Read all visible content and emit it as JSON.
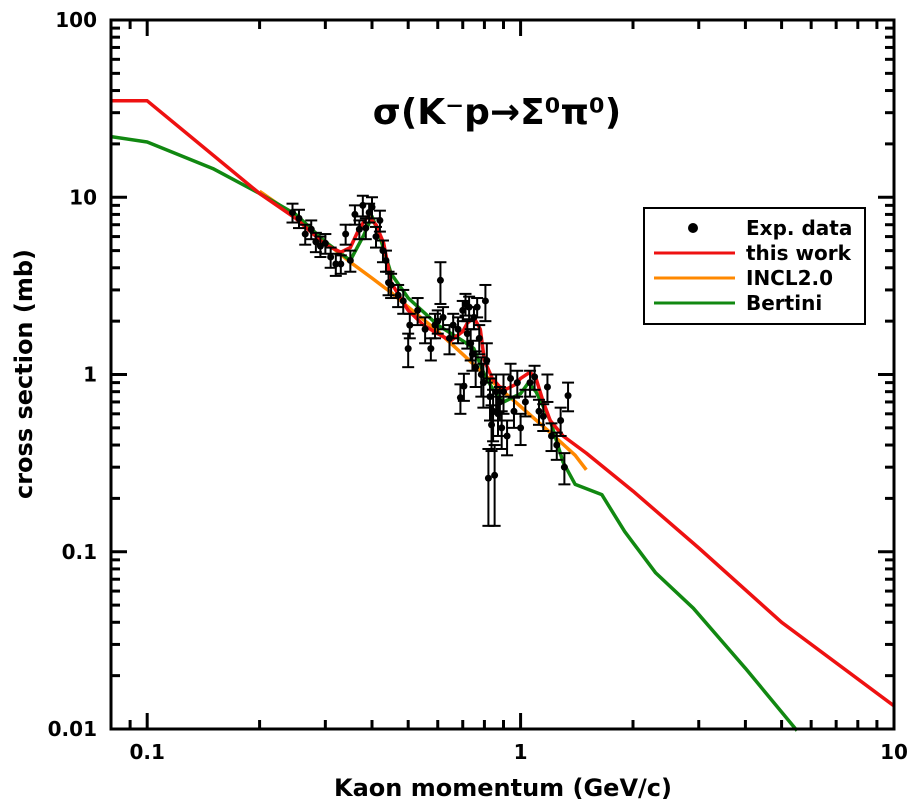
{
  "chart_data": {
    "type": "line",
    "title": "σ(K⁻p→Σ⁰π⁰)",
    "xlabel": "Kaon momentum (GeV/c)",
    "ylabel": "cross section (mb)",
    "xscale": "log",
    "yscale": "log",
    "xlim": [
      0.08,
      10
    ],
    "ylim": [
      0.01,
      100
    ],
    "x_tick_labels": [
      {
        "value": 0.1,
        "label": "0.1"
      },
      {
        "value": 1,
        "label": "1"
      },
      {
        "value": 10,
        "label": "10"
      }
    ],
    "y_tick_labels": [
      {
        "value": 0.01,
        "label": "0.01"
      },
      {
        "value": 0.1,
        "label": "0.1"
      },
      {
        "value": 1,
        "label": "1"
      },
      {
        "value": 10,
        "label": "10"
      },
      {
        "value": 100,
        "label": "100"
      }
    ],
    "legend_position": "top-right",
    "series": [
      {
        "name": "this work",
        "kind": "line",
        "color": "#ee1111",
        "x": [
          0.08,
          0.1,
          0.2,
          0.25,
          0.3,
          0.33,
          0.35,
          0.37,
          0.39,
          0.41,
          0.43,
          0.45,
          0.5,
          0.55,
          0.6,
          0.65,
          0.7,
          0.72,
          0.75,
          0.78,
          0.8,
          0.84,
          0.88,
          0.92,
          0.97,
          1.0,
          1.06,
          1.1,
          1.15,
          1.2,
          1.3,
          1.5,
          2.0,
          3.0,
          5.0,
          10.0
        ],
        "y": [
          35,
          35,
          10.5,
          7.6,
          5.4,
          4.9,
          5.2,
          6.7,
          7.8,
          7.0,
          5.5,
          3.3,
          2.3,
          1.9,
          1.7,
          1.55,
          1.75,
          1.95,
          2.1,
          1.8,
          1.2,
          0.95,
          0.85,
          0.83,
          0.88,
          0.95,
          1.03,
          0.95,
          0.7,
          0.55,
          0.45,
          0.36,
          0.22,
          0.105,
          0.04,
          0.0135
        ]
      },
      {
        "name": "INCL2.0",
        "kind": "line",
        "color": "#ff8800",
        "x": [
          0.2,
          0.25,
          0.3,
          0.35,
          0.4,
          0.45,
          0.5,
          0.6,
          0.7,
          0.8,
          0.9,
          1.0,
          1.2,
          1.4,
          1.5
        ],
        "y": [
          10.8,
          7.8,
          5.6,
          4.3,
          3.5,
          2.9,
          2.4,
          1.75,
          1.3,
          1.0,
          0.8,
          0.66,
          0.47,
          0.35,
          0.29
        ]
      },
      {
        "name": "Bertini",
        "kind": "line",
        "color": "#118811",
        "x": [
          0.08,
          0.1,
          0.15,
          0.2,
          0.25,
          0.3,
          0.35,
          0.38,
          0.4,
          0.42,
          0.45,
          0.5,
          0.6,
          0.7,
          0.75,
          0.8,
          0.85,
          0.9,
          1.0,
          1.05,
          1.1,
          1.2,
          1.3,
          1.4,
          1.65,
          1.9,
          2.3,
          2.9,
          4.0,
          5.5
        ],
        "y": [
          22,
          20.5,
          14.5,
          10.5,
          8.0,
          5.6,
          4.4,
          6.1,
          7.8,
          6.0,
          3.7,
          2.7,
          1.9,
          1.55,
          1.4,
          1.0,
          0.8,
          0.7,
          0.78,
          0.9,
          0.8,
          0.55,
          0.32,
          0.24,
          0.21,
          0.13,
          0.076,
          0.048,
          0.022,
          0.0098
        ]
      },
      {
        "name": "Exp. data",
        "kind": "errorbar",
        "color": "#000000",
        "points": [
          {
            "x": 0.245,
            "y": 8.2,
            "err": 1.0
          },
          {
            "x": 0.255,
            "y": 7.6,
            "err": 0.9
          },
          {
            "x": 0.265,
            "y": 6.2,
            "err": 0.8
          },
          {
            "x": 0.275,
            "y": 6.6,
            "err": 0.8
          },
          {
            "x": 0.283,
            "y": 5.6,
            "err": 0.7
          },
          {
            "x": 0.291,
            "y": 5.3,
            "err": 0.7
          },
          {
            "x": 0.3,
            "y": 5.5,
            "err": 0.7
          },
          {
            "x": 0.31,
            "y": 4.6,
            "err": 0.6
          },
          {
            "x": 0.32,
            "y": 4.2,
            "err": 0.6
          },
          {
            "x": 0.33,
            "y": 4.2,
            "err": 0.5
          },
          {
            "x": 0.34,
            "y": 6.2,
            "err": 0.8
          },
          {
            "x": 0.35,
            "y": 4.4,
            "err": 0.6
          },
          {
            "x": 0.36,
            "y": 8.0,
            "err": 1.0
          },
          {
            "x": 0.37,
            "y": 6.6,
            "err": 0.8
          },
          {
            "x": 0.378,
            "y": 9.0,
            "err": 1.2
          },
          {
            "x": 0.385,
            "y": 6.7,
            "err": 0.9
          },
          {
            "x": 0.393,
            "y": 8.2,
            "err": 1.0
          },
          {
            "x": 0.4,
            "y": 8.8,
            "err": 1.2
          },
          {
            "x": 0.41,
            "y": 6.0,
            "err": 0.8
          },
          {
            "x": 0.42,
            "y": 7.4,
            "err": 1.0
          },
          {
            "x": 0.428,
            "y": 5.0,
            "err": 0.7
          },
          {
            "x": 0.436,
            "y": 4.4,
            "err": 0.6
          },
          {
            "x": 0.443,
            "y": 3.3,
            "err": 0.5
          },
          {
            "x": 0.45,
            "y": 3.2,
            "err": 0.5
          },
          {
            "x": 0.47,
            "y": 2.8,
            "err": 0.4
          },
          {
            "x": 0.485,
            "y": 2.6,
            "err": 0.4
          },
          {
            "x": 0.5,
            "y": 1.4,
            "err": 0.3
          },
          {
            "x": 0.505,
            "y": 1.9,
            "err": 0.3
          },
          {
            "x": 0.53,
            "y": 2.3,
            "err": 0.4
          },
          {
            "x": 0.555,
            "y": 1.8,
            "err": 0.3
          },
          {
            "x": 0.575,
            "y": 1.4,
            "err": 0.2
          },
          {
            "x": 0.59,
            "y": 1.9,
            "err": 0.3
          },
          {
            "x": 0.6,
            "y": 2.0,
            "err": 0.3
          },
          {
            "x": 0.61,
            "y": 3.4,
            "err": 0.9
          },
          {
            "x": 0.62,
            "y": 2.1,
            "err": 0.3
          },
          {
            "x": 0.645,
            "y": 1.6,
            "err": 0.3
          },
          {
            "x": 0.66,
            "y": 1.9,
            "err": 0.3
          },
          {
            "x": 0.68,
            "y": 1.8,
            "err": 0.3
          },
          {
            "x": 0.69,
            "y": 0.74,
            "err": 0.14
          },
          {
            "x": 0.7,
            "y": 2.3,
            "err": 0.3
          },
          {
            "x": 0.705,
            "y": 0.86,
            "err": 0.15
          },
          {
            "x": 0.712,
            "y": 2.5,
            "err": 0.35
          },
          {
            "x": 0.72,
            "y": 1.7,
            "err": 0.3
          },
          {
            "x": 0.728,
            "y": 2.4,
            "err": 0.35
          },
          {
            "x": 0.735,
            "y": 1.5,
            "err": 0.3
          },
          {
            "x": 0.743,
            "y": 1.3,
            "err": 0.25
          },
          {
            "x": 0.75,
            "y": 2.1,
            "err": 0.3
          },
          {
            "x": 0.758,
            "y": 1.1,
            "err": 0.25
          },
          {
            "x": 0.765,
            "y": 2.4,
            "err": 0.3
          },
          {
            "x": 0.775,
            "y": 1.6,
            "err": 0.3
          },
          {
            "x": 0.785,
            "y": 1.0,
            "err": 0.25
          },
          {
            "x": 0.795,
            "y": 0.9,
            "err": 0.25
          },
          {
            "x": 0.805,
            "y": 2.6,
            "err": 0.6
          },
          {
            "x": 0.812,
            "y": 1.2,
            "err": 0.3
          },
          {
            "x": 0.82,
            "y": 0.26,
            "err": 0.12
          },
          {
            "x": 0.828,
            "y": 0.75,
            "err": 0.2
          },
          {
            "x": 0.836,
            "y": 0.52,
            "err": 0.15
          },
          {
            "x": 0.844,
            "y": 0.62,
            "err": 0.2
          },
          {
            "x": 0.852,
            "y": 0.27,
            "err": 0.13
          },
          {
            "x": 0.86,
            "y": 0.8,
            "err": 0.2
          },
          {
            "x": 0.87,
            "y": 0.6,
            "err": 0.15
          },
          {
            "x": 0.88,
            "y": 0.7,
            "err": 0.15
          },
          {
            "x": 0.89,
            "y": 0.5,
            "err": 0.12
          },
          {
            "x": 0.9,
            "y": 0.8,
            "err": 0.2
          },
          {
            "x": 0.92,
            "y": 0.45,
            "err": 0.1
          },
          {
            "x": 0.94,
            "y": 0.95,
            "err": 0.2
          },
          {
            "x": 0.96,
            "y": 0.62,
            "err": 0.12
          },
          {
            "x": 0.98,
            "y": 0.9,
            "err": 0.15
          },
          {
            "x": 1.0,
            "y": 0.5,
            "err": 0.1
          },
          {
            "x": 1.03,
            "y": 0.7,
            "err": 0.12
          },
          {
            "x": 1.06,
            "y": 0.9,
            "err": 0.15
          },
          {
            "x": 1.09,
            "y": 0.97,
            "err": 0.15
          },
          {
            "x": 1.12,
            "y": 0.62,
            "err": 0.1
          },
          {
            "x": 1.15,
            "y": 0.58,
            "err": 0.1
          },
          {
            "x": 1.18,
            "y": 0.85,
            "err": 0.15
          },
          {
            "x": 1.21,
            "y": 0.45,
            "err": 0.08
          },
          {
            "x": 1.25,
            "y": 0.4,
            "err": 0.07
          },
          {
            "x": 1.28,
            "y": 0.55,
            "err": 0.1
          },
          {
            "x": 1.31,
            "y": 0.3,
            "err": 0.06
          },
          {
            "x": 1.34,
            "y": 0.76,
            "err": 0.14
          }
        ]
      }
    ],
    "legend": [
      {
        "label": "Exp. data",
        "symbol": "marker",
        "color": "#000000"
      },
      {
        "label": "this work",
        "symbol": "line",
        "color": "#ee1111"
      },
      {
        "label": "INCL2.0",
        "symbol": "line",
        "color": "#ff8800"
      },
      {
        "label": "Bertini",
        "symbol": "line",
        "color": "#118811"
      }
    ]
  }
}
